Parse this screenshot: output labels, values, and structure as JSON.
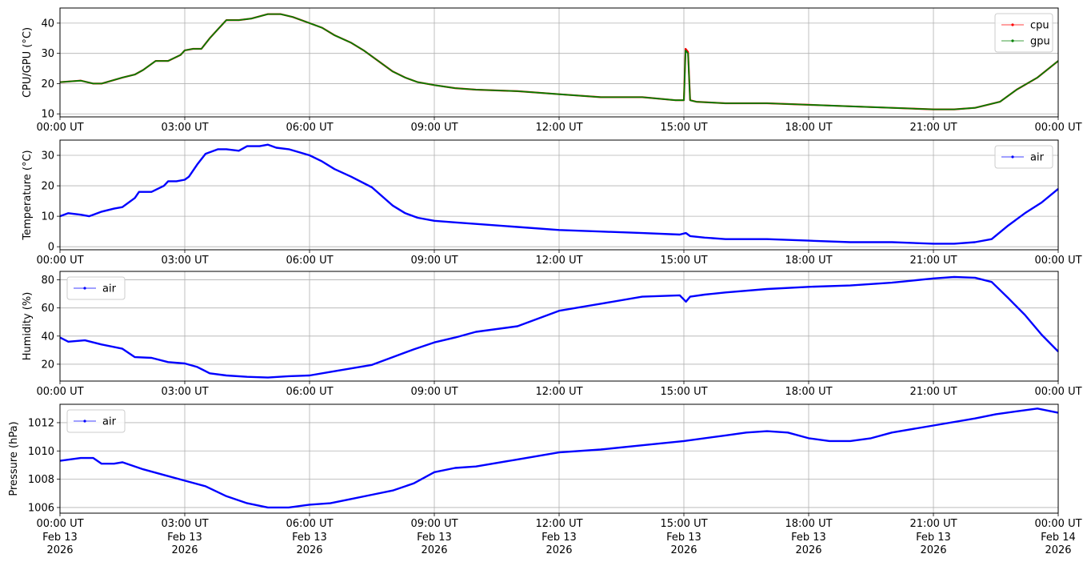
{
  "chart_data": [
    {
      "type": "line",
      "ylabel": "CPU/GPU (°C)",
      "ylim": [
        9,
        45
      ],
      "yticks": [
        10,
        20,
        30,
        40
      ],
      "grid": true,
      "legend_position": "upper-right",
      "xticks": [
        {
          "time": "00:00 UT"
        },
        {
          "time": "03:00 UT"
        },
        {
          "time": "06:00 UT"
        },
        {
          "time": "09:00 UT"
        },
        {
          "time": "12:00 UT"
        },
        {
          "time": "15:00 UT"
        },
        {
          "time": "18:00 UT"
        },
        {
          "time": "21:00 UT"
        },
        {
          "time": "00:00 UT"
        }
      ],
      "series": [
        {
          "name": "cpu",
          "color": "#ff0000",
          "x_hours": [
            0,
            0.5,
            0.8,
            1.0,
            1.5,
            1.8,
            2.0,
            2.3,
            2.6,
            2.9,
            3.0,
            3.2,
            3.4,
            3.6,
            3.8,
            4.0,
            4.3,
            4.6,
            5.0,
            5.3,
            5.6,
            6.0,
            6.3,
            6.6,
            7.0,
            7.3,
            7.6,
            8.0,
            8.3,
            8.6,
            9.0,
            9.5,
            10,
            11,
            12,
            13,
            14,
            14.8,
            15.0,
            15.04,
            15.1,
            15.15,
            15.3,
            16,
            17,
            18,
            19,
            20,
            21,
            21.5,
            22,
            22.3,
            22.6,
            23,
            23.5,
            24
          ],
          "y": [
            20.5,
            21,
            20,
            20,
            22,
            23,
            24.5,
            27.5,
            27.5,
            29.5,
            31,
            31.5,
            31.5,
            35,
            38,
            41,
            41,
            41.5,
            43,
            43,
            42,
            40,
            38.5,
            36,
            33.5,
            31,
            28,
            24,
            22,
            20.5,
            19.5,
            18.5,
            18,
            17.5,
            16.5,
            15.5,
            15.5,
            14.5,
            14.5,
            31.5,
            30.5,
            14.5,
            14,
            13.5,
            13.5,
            13,
            12.5,
            12,
            11.5,
            11.5,
            12,
            13,
            14,
            18,
            22,
            27.5
          ]
        },
        {
          "name": "gpu",
          "color": "#008000",
          "x_hours": [
            0,
            0.5,
            0.8,
            1.0,
            1.5,
            1.8,
            2.0,
            2.3,
            2.6,
            2.9,
            3.0,
            3.2,
            3.4,
            3.6,
            3.8,
            4.0,
            4.3,
            4.6,
            5.0,
            5.3,
            5.6,
            6.0,
            6.3,
            6.6,
            7.0,
            7.3,
            7.6,
            8.0,
            8.3,
            8.6,
            9.0,
            9.5,
            10,
            11,
            12,
            13,
            14,
            14.8,
            15.0,
            15.04,
            15.1,
            15.15,
            15.3,
            16,
            17,
            18,
            19,
            20,
            21,
            21.5,
            22,
            22.3,
            22.6,
            23,
            23.5,
            24
          ],
          "y": [
            20.5,
            21,
            20,
            20,
            22,
            23,
            24.5,
            27.5,
            27.5,
            29.5,
            31,
            31.5,
            31.5,
            35,
            38,
            41,
            41,
            41.5,
            43,
            43,
            42,
            40,
            38.5,
            36,
            33.5,
            31,
            28,
            24,
            22,
            20.5,
            19.5,
            18.5,
            18,
            17.5,
            16.5,
            15.5,
            15.5,
            14.5,
            14.5,
            31,
            30,
            14.5,
            14,
            13.5,
            13.5,
            13,
            12.5,
            12,
            11.5,
            11.5,
            12,
            13,
            14,
            18,
            22,
            27.5
          ]
        }
      ]
    },
    {
      "type": "line",
      "ylabel": "Temperature (°C)",
      "ylim": [
        -1,
        35
      ],
      "yticks": [
        0,
        10,
        20,
        30
      ],
      "grid": true,
      "legend_position": "upper-right",
      "xticks": [
        {
          "time": "00:00 UT"
        },
        {
          "time": "03:00 UT"
        },
        {
          "time": "06:00 UT"
        },
        {
          "time": "09:00 UT"
        },
        {
          "time": "12:00 UT"
        },
        {
          "time": "15:00 UT"
        },
        {
          "time": "18:00 UT"
        },
        {
          "time": "21:00 UT"
        },
        {
          "time": "00:00 UT"
        }
      ],
      "series": [
        {
          "name": "air",
          "color": "#0000ff",
          "x_hours": [
            0,
            0.2,
            0.5,
            0.7,
            0.8,
            1.0,
            1.3,
            1.5,
            1.8,
            1.9,
            2.2,
            2.5,
            2.6,
            2.8,
            3.0,
            3.1,
            3.3,
            3.5,
            3.8,
            4.0,
            4.3,
            4.5,
            4.8,
            5.0,
            5.2,
            5.5,
            6.0,
            6.3,
            6.6,
            7.0,
            7.5,
            8.0,
            8.3,
            8.6,
            9.0,
            9.5,
            10,
            11,
            12,
            13,
            14,
            14.9,
            15.05,
            15.15,
            15.5,
            16,
            17,
            18,
            19,
            20,
            21,
            21.5,
            22,
            22.4,
            22.8,
            23.2,
            23.6,
            24
          ],
          "y": [
            10,
            11,
            10.5,
            10,
            10.5,
            11.5,
            12.5,
            13,
            16,
            18,
            18,
            20,
            21.5,
            21.5,
            22,
            23,
            27,
            30.5,
            32,
            32,
            31.5,
            33,
            33,
            33.5,
            32.5,
            32,
            30,
            28,
            25.5,
            23,
            19.5,
            13.5,
            11,
            9.5,
            8.5,
            8,
            7.5,
            6.5,
            5.5,
            5,
            4.5,
            4,
            4.5,
            3.5,
            3,
            2.5,
            2.5,
            2,
            1.5,
            1.5,
            1,
            1,
            1.5,
            2.5,
            7,
            11,
            14.5,
            19
          ]
        }
      ]
    },
    {
      "type": "line",
      "ylabel": "Humidity (%)",
      "ylim": [
        8,
        86
      ],
      "yticks": [
        20,
        40,
        60,
        80
      ],
      "grid": true,
      "legend_position": "upper-left",
      "xticks": [
        {
          "time": "00:00 UT"
        },
        {
          "time": "03:00 UT"
        },
        {
          "time": "06:00 UT"
        },
        {
          "time": "09:00 UT"
        },
        {
          "time": "12:00 UT"
        },
        {
          "time": "15:00 UT"
        },
        {
          "time": "18:00 UT"
        },
        {
          "time": "21:00 UT"
        },
        {
          "time": "00:00 UT"
        }
      ],
      "series": [
        {
          "name": "air",
          "color": "#0000ff",
          "x_hours": [
            0,
            0.2,
            0.6,
            1.0,
            1.5,
            1.8,
            2.2,
            2.6,
            3.0,
            3.3,
            3.6,
            4.0,
            4.5,
            5.0,
            5.5,
            6.0,
            6.5,
            7.0,
            7.5,
            8.0,
            8.5,
            9.0,
            9.5,
            10,
            11,
            12,
            13,
            14,
            14.9,
            15.05,
            15.15,
            15.5,
            16,
            17,
            18,
            19,
            20,
            21,
            21.5,
            22,
            22.4,
            22.8,
            23.2,
            23.6,
            24
          ],
          "y": [
            39,
            36,
            37,
            34,
            31,
            25,
            24.5,
            21.5,
            20.5,
            18,
            13.5,
            12,
            11,
            10.5,
            11.5,
            12,
            14.5,
            17,
            19.5,
            25,
            30.5,
            35.5,
            39,
            43,
            47,
            58,
            63,
            68,
            69,
            64.5,
            68,
            69.5,
            71,
            73.5,
            75,
            76,
            78,
            81,
            82,
            81.5,
            78.5,
            67,
            55,
            41,
            29
          ]
        }
      ]
    },
    {
      "type": "line",
      "ylabel": "Pressure (hPa)",
      "ylim": [
        1005.6,
        1013.3
      ],
      "yticks": [
        1006,
        1008,
        1010,
        1012
      ],
      "grid": true,
      "legend_position": "upper-left",
      "xticks": [
        {
          "time": "00:00 UT",
          "date": "Feb 13",
          "year": "2026"
        },
        {
          "time": "03:00 UT",
          "date": "Feb 13",
          "year": "2026"
        },
        {
          "time": "06:00 UT",
          "date": "Feb 13",
          "year": "2026"
        },
        {
          "time": "09:00 UT",
          "date": "Feb 13",
          "year": "2026"
        },
        {
          "time": "12:00 UT",
          "date": "Feb 13",
          "year": "2026"
        },
        {
          "time": "15:00 UT",
          "date": "Feb 13",
          "year": "2026"
        },
        {
          "time": "18:00 UT",
          "date": "Feb 13",
          "year": "2026"
        },
        {
          "time": "21:00 UT",
          "date": "Feb 13",
          "year": "2026"
        },
        {
          "time": "00:00 UT",
          "date": "Feb 14",
          "year": "2026"
        }
      ],
      "series": [
        {
          "name": "air",
          "color": "#0000ff",
          "x_hours": [
            0,
            0.5,
            0.8,
            1.0,
            1.3,
            1.5,
            2.0,
            2.5,
            3.0,
            3.5,
            4.0,
            4.5,
            5.0,
            5.5,
            6.0,
            6.5,
            7.0,
            7.5,
            8.0,
            8.5,
            9.0,
            9.5,
            10,
            11,
            12,
            13,
            14,
            15,
            16,
            16.5,
            17,
            17.5,
            18,
            18.5,
            19,
            19.5,
            20,
            21,
            22,
            22.5,
            23,
            23.5,
            24
          ],
          "y": [
            1009.3,
            1009.5,
            1009.5,
            1009.1,
            1009.1,
            1009.2,
            1008.7,
            1008.3,
            1007.9,
            1007.5,
            1006.8,
            1006.3,
            1006,
            1006,
            1006.2,
            1006.3,
            1006.6,
            1006.9,
            1007.2,
            1007.7,
            1008.5,
            1008.8,
            1008.9,
            1009.4,
            1009.9,
            1010.1,
            1010.4,
            1010.7,
            1011.1,
            1011.3,
            1011.4,
            1011.3,
            1010.9,
            1010.7,
            1010.7,
            1010.9,
            1011.3,
            1011.8,
            1012.3,
            1012.6,
            1012.8,
            1013,
            1012.7
          ]
        }
      ]
    }
  ]
}
